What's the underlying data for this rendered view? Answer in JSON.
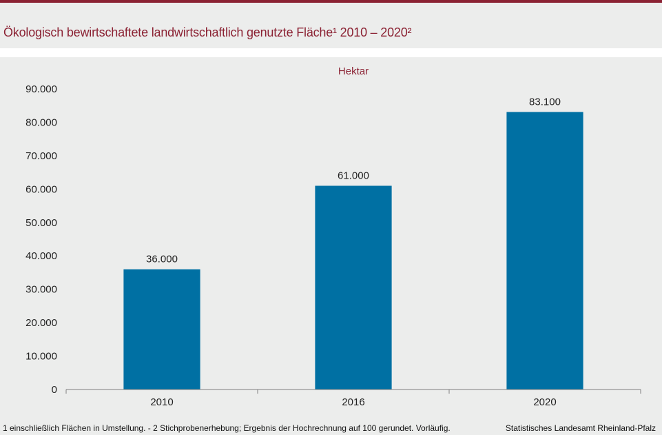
{
  "header": {
    "title": "Ökologisch bewirtschaftete landwirtschaftlich genutzte Fläche¹ 2010 – 2020²"
  },
  "chart_data": {
    "type": "bar",
    "title": "Ökologisch bewirtschaftete landwirtschaftlich genutzte Fläche¹ 2010 – 2020²",
    "unit_label": "Hektar",
    "categories": [
      "2010",
      "2016",
      "2020"
    ],
    "values": [
      36000,
      61000,
      83100
    ],
    "data_labels": [
      "36.000",
      "61.000",
      "83.100"
    ],
    "ylim": [
      0,
      90000
    ],
    "y_ticks": [
      0,
      10000,
      20000,
      30000,
      40000,
      50000,
      60000,
      70000,
      80000,
      90000
    ],
    "y_tick_labels": [
      "0",
      "10.000",
      "20.000",
      "30.000",
      "40.000",
      "50.000",
      "60.000",
      "70.000",
      "80.000",
      "90.000"
    ],
    "grid": false,
    "legend": "none",
    "colors": {
      "bar": "#0070a3",
      "accent": "#8b2233",
      "background": "#ecedec"
    }
  },
  "footer": {
    "footnote": "1 einschließlich Flächen in Umstellung. - 2 Stichprobenerhebung; Ergebnis der Hochrechnung auf 100 gerundet. Vorläufig.",
    "source": "Statistisches Landesamt  Rheinland-Pfalz"
  }
}
